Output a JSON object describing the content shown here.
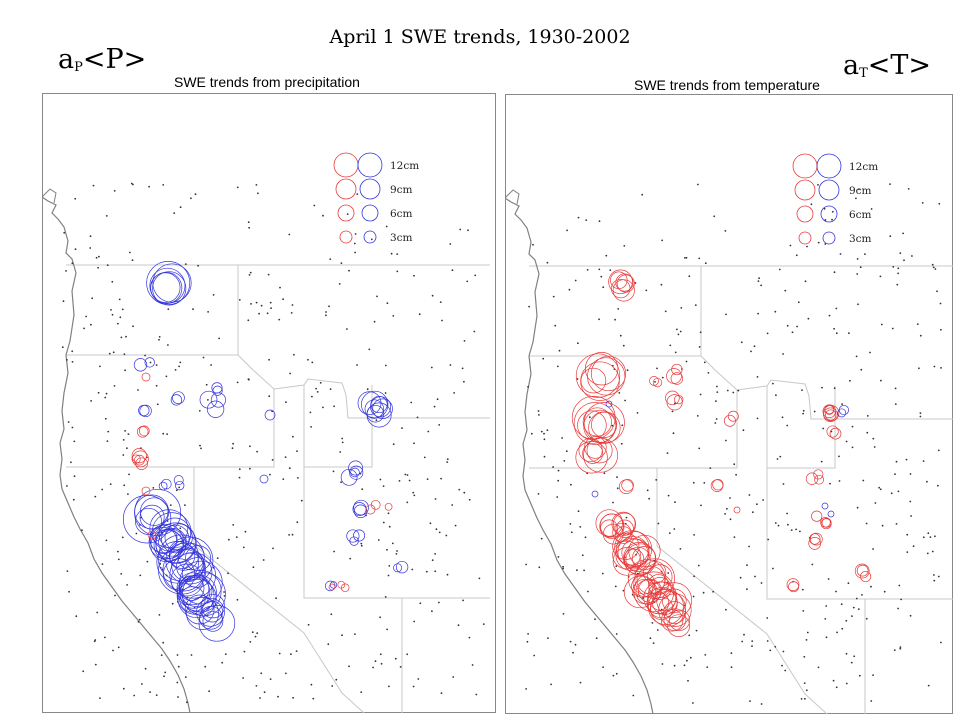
{
  "title": "April 1 SWE trends, 1930-2002",
  "colors": {
    "precip_circle": "#3333dd",
    "temp_circle": "#e83a3a",
    "station_dot": "#333333",
    "border": "#c8c8c8",
    "coast": "#808080"
  },
  "panels": [
    {
      "id": "precipitation",
      "label_main": "a",
      "label_sub": "P",
      "label_tail": "<P>",
      "title": "SWE trends from precipitation",
      "dominant_color": "blue",
      "legend": [
        {
          "label": "12cm",
          "size_cm": 12
        },
        {
          "label": "9cm",
          "size_cm": 9
        },
        {
          "label": "6cm",
          "size_cm": 6
        },
        {
          "label": "3cm",
          "size_cm": 3
        }
      ]
    },
    {
      "id": "temperature",
      "label_main": "a",
      "label_sub": "T",
      "label_tail": "<T>",
      "title": "SWE trends from temperature",
      "dominant_color": "red",
      "legend": [
        {
          "label": "12cm",
          "size_cm": 12
        },
        {
          "label": "9cm",
          "size_cm": 9
        },
        {
          "label": "6cm",
          "size_cm": 6
        },
        {
          "label": "3cm",
          "size_cm": 3
        }
      ]
    }
  ]
}
